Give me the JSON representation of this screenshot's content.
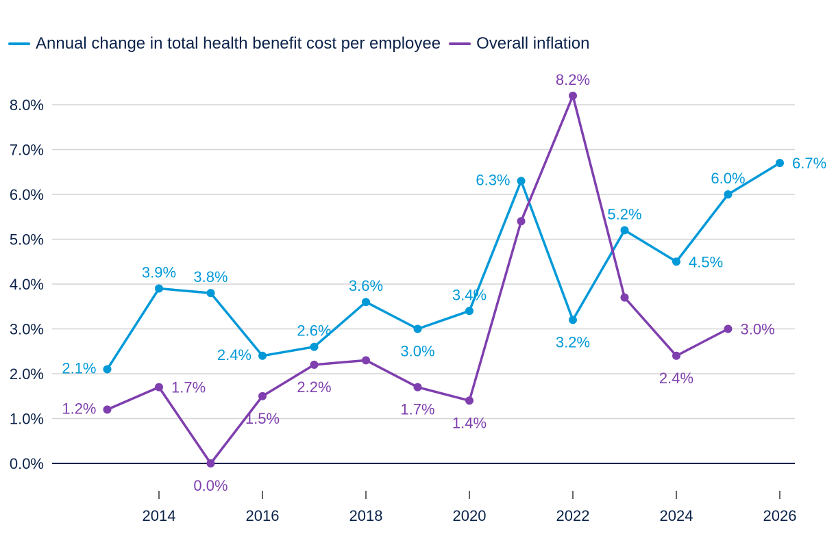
{
  "chart_data": {
    "type": "line",
    "title": "",
    "xlabel": "",
    "ylabel": "",
    "x": [
      2013,
      2014,
      2015,
      2016,
      2017,
      2018,
      2019,
      2020,
      2021,
      2022,
      2023,
      2024,
      2025,
      2026
    ],
    "xticks": [
      2014,
      2016,
      2018,
      2020,
      2022,
      2024,
      2026
    ],
    "xtick_labels": [
      "2014",
      "2016",
      "2018",
      "2020",
      "2022",
      "2024",
      "2026"
    ],
    "xlim": [
      2012,
      2026
    ],
    "ylim": [
      -0.3,
      8.3
    ],
    "yticks": [
      0,
      1,
      2,
      3,
      4,
      5,
      6,
      7,
      8
    ],
    "ytick_labels": [
      "0.0%",
      "1.0%",
      "2.0%",
      "3.0%",
      "4.0%",
      "5.0%",
      "6.0%",
      "7.0%",
      "8.0%"
    ],
    "grid": true,
    "legend_position": "top-left",
    "series": [
      {
        "name": "Annual change in total health benefit cost per employee",
        "color": "#0099d8",
        "x": [
          2013,
          2014,
          2015,
          2016,
          2017,
          2018,
          2019,
          2020,
          2021,
          2022,
          2023,
          2024,
          2025,
          2026
        ],
        "values": [
          2.1,
          3.9,
          3.8,
          2.4,
          2.6,
          3.6,
          3.0,
          3.4,
          6.3,
          3.2,
          5.2,
          4.5,
          6.0,
          6.7
        ],
        "labels": [
          "2.1%",
          "3.9%",
          "3.8%",
          "2.4%",
          "2.6%",
          "3.6%",
          "3.0%",
          "3.4%",
          "6.3%",
          "3.2%",
          "5.2%",
          "4.5%",
          "6.0%",
          "6.7%"
        ],
        "label_positions": [
          "left",
          "above",
          "above",
          "left",
          "above",
          "above",
          "below",
          "above",
          "left",
          "below",
          "above",
          "right",
          "above",
          "right"
        ]
      },
      {
        "name": "Overall inflation",
        "color": "#7f3fae",
        "x": [
          2013,
          2014,
          2015,
          2016,
          2017,
          2018,
          2019,
          2020,
          2021,
          2022,
          2023,
          2024,
          2025
        ],
        "values": [
          1.2,
          1.7,
          0.0,
          1.5,
          2.2,
          2.3,
          1.7,
          1.4,
          5.4,
          8.2,
          3.7,
          2.4,
          3.0
        ],
        "labels": [
          "1.2%",
          "1.7%",
          "0.0%",
          "1.5%",
          "2.2%",
          "",
          "1.7%",
          "1.4%",
          "",
          "8.2%",
          "",
          "2.4%",
          "3.0%"
        ],
        "label_positions": [
          "left",
          "right",
          "below",
          "below",
          "below",
          "none",
          "below",
          "below",
          "none",
          "above",
          "none",
          "below",
          "right"
        ]
      }
    ]
  }
}
